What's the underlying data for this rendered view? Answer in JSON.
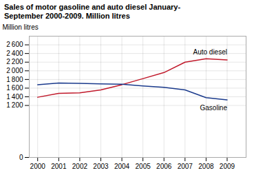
{
  "chart_data": {
    "type": "line",
    "title": "Sales of motor gasoline and auto diesel January-\nSeptember 2000-2009. Million litres",
    "ylabel": "Million litres",
    "x": [
      2000,
      2001,
      2002,
      2003,
      2004,
      2005,
      2006,
      2007,
      2008,
      2009
    ],
    "series": [
      {
        "name": "Auto diesel",
        "color": "#c0182a",
        "values": [
          1390,
          1480,
          1490,
          1560,
          1680,
          1820,
          1960,
          2200,
          2280,
          2250
        ]
      },
      {
        "name": "Gasoline",
        "color": "#1a3a8c",
        "values": [
          1680,
          1720,
          1710,
          1700,
          1690,
          1650,
          1620,
          1560,
          1380,
          1330
        ]
      }
    ],
    "xlim": [
      1999.6,
      2009.9
    ],
    "xticks": [
      2000,
      2001,
      2002,
      2003,
      2004,
      2005,
      2006,
      2007,
      2008,
      2009
    ],
    "ylim": [
      0,
      2800
    ],
    "yticks": [
      0,
      {
        "value": 1200,
        "label": "1 200"
      },
      {
        "value": 1400,
        "label": "1 400"
      },
      {
        "value": 1600,
        "label": "1 600"
      },
      {
        "value": 1800,
        "label": "1 800"
      },
      {
        "value": 2000,
        "label": "2 000"
      },
      {
        "value": 2200,
        "label": "2 200"
      },
      {
        "value": 2400,
        "label": "2 400"
      },
      {
        "value": 2600,
        "label": "2 600"
      }
    ],
    "grid": true
  }
}
